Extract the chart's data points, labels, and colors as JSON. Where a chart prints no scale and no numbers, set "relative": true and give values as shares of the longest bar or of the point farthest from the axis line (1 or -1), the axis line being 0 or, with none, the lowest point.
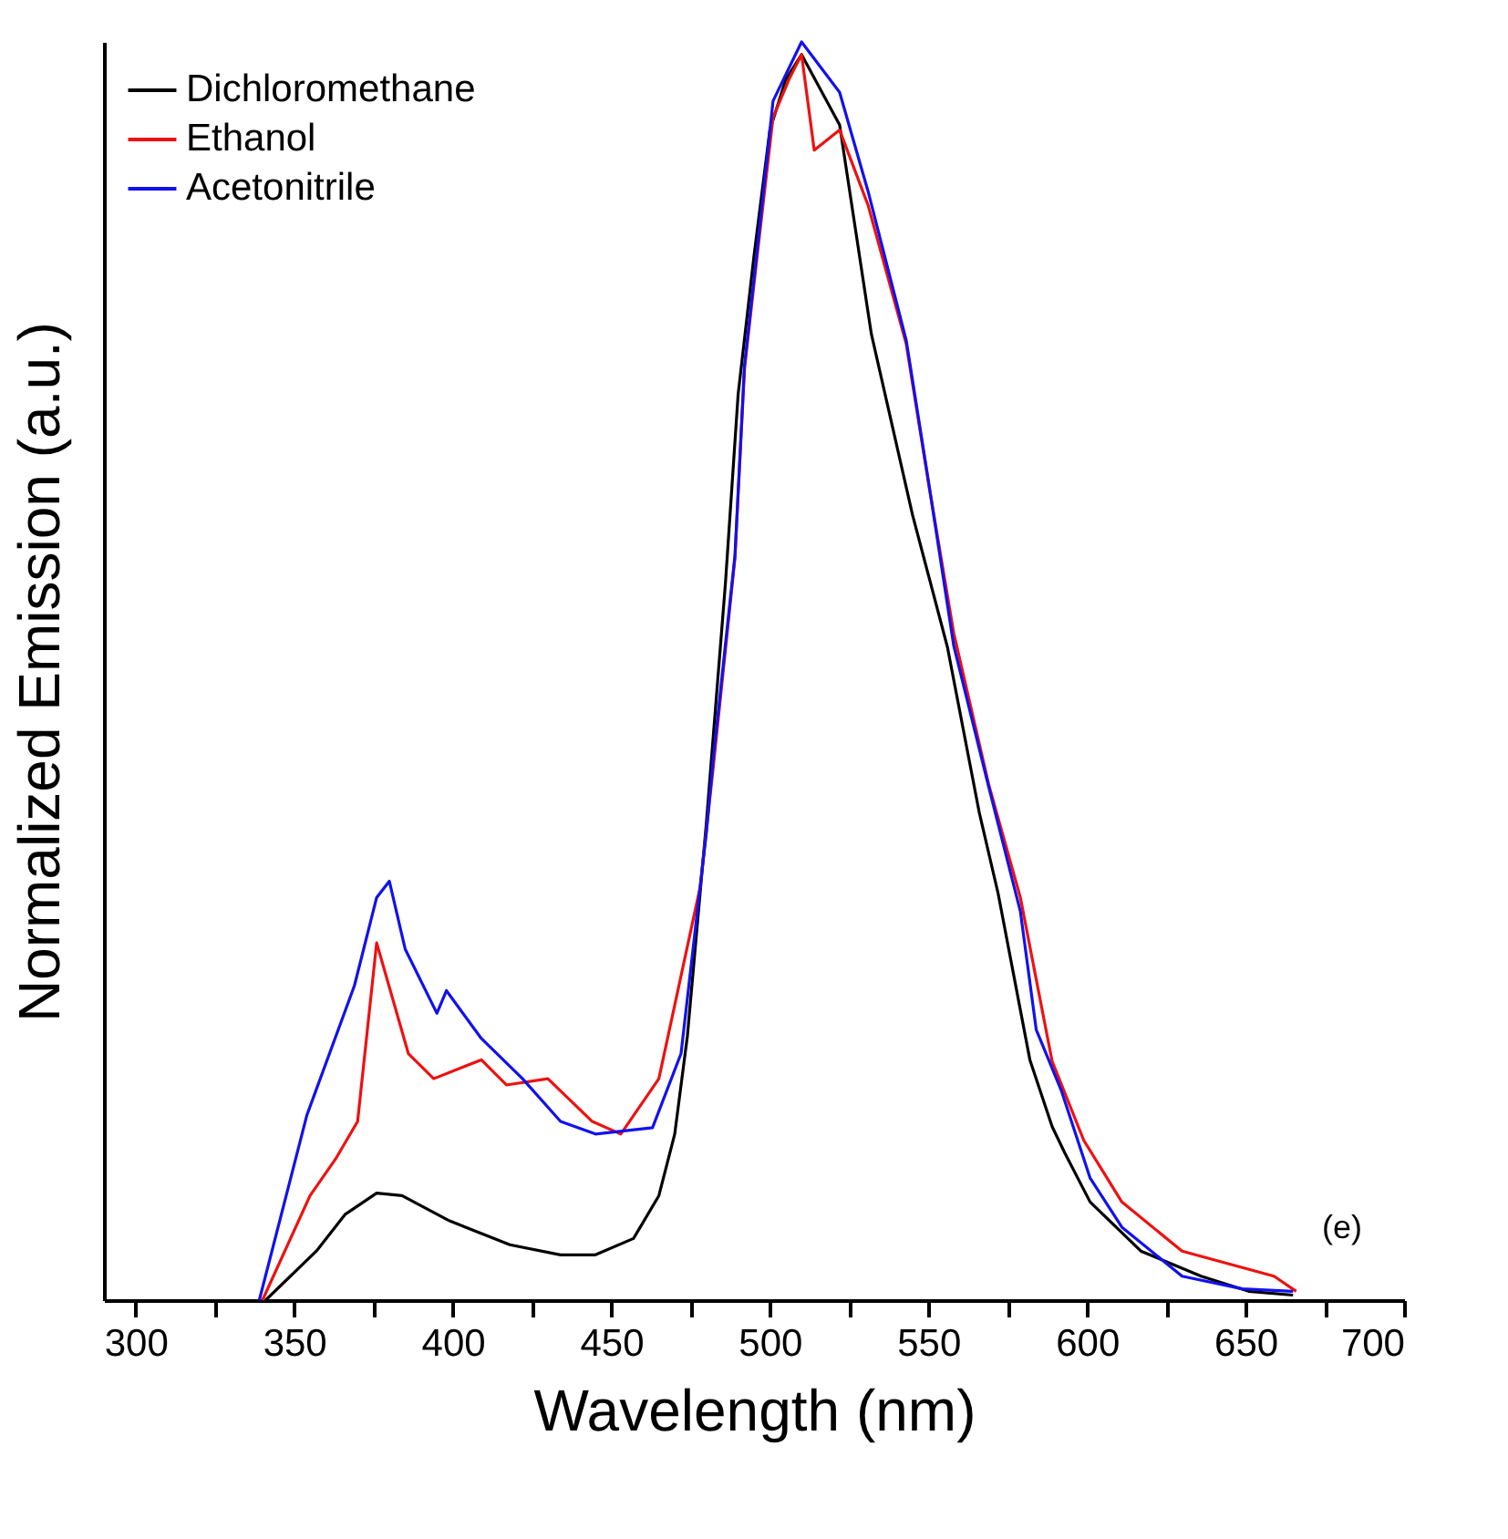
{
  "chart_data": {
    "type": "line",
    "xlabel": "Wavelength (nm)",
    "ylabel": "Normalized Emission (a.u.)",
    "relative": true,
    "legend": "top left",
    "grid": false,
    "marker": "none",
    "line_style": "solid",
    "xlim": [
      290,
      700
    ],
    "xticks": [
      300,
      {
        "value": 325,
        "label": null
      },
      350,
      {
        "value": 375,
        "label": null
      },
      400,
      {
        "value": 425,
        "label": null
      },
      450,
      {
        "value": 475,
        "label": null
      },
      500,
      {
        "value": 525,
        "label": null
      },
      550,
      {
        "value": 575,
        "label": null
      },
      600,
      {
        "value": 625,
        "label": null
      },
      650,
      {
        "value": 675,
        "label": null
      },
      700
    ],
    "annotations": [
      "(e)"
    ],
    "series": [
      {
        "name": "Dichloromethane",
        "color": "#000000",
        "x": [
          341,
          357,
          366,
          376,
          384,
          399,
          418,
          434,
          445,
          457,
          465,
          470,
          474,
          480,
          486,
          490,
          495,
          500,
          505,
          510,
          522,
          532,
          545,
          556,
          566,
          572,
          582,
          589,
          593,
          601,
          617,
          636,
          651,
          665
        ],
        "values": [
          0,
          0.039,
          0.068,
          0.085,
          0.083,
          0.063,
          0.044,
          0.036,
          0.036,
          0.049,
          0.083,
          0.132,
          0.21,
          0.38,
          0.57,
          0.72,
          0.83,
          0.93,
          0.97,
          0.99,
          0.934,
          0.768,
          0.624,
          0.519,
          0.388,
          0.323,
          0.191,
          0.138,
          0.117,
          0.078,
          0.039,
          0.019,
          0.007,
          0.004
        ]
      },
      {
        "name": "Ethanol",
        "color": "#ee1111",
        "x": [
          340,
          355,
          363,
          370,
          376,
          386,
          394,
          409,
          417,
          430,
          444,
          453,
          465,
          478,
          482,
          489,
          492,
          496,
          501,
          506,
          510,
          514,
          522,
          531,
          543,
          550,
          558,
          569,
          579,
          589,
          599,
          611,
          630,
          659,
          666
        ],
        "values": [
          0,
          0.083,
          0.112,
          0.142,
          0.284,
          0.196,
          0.176,
          0.191,
          0.171,
          0.176,
          0.142,
          0.132,
          0.176,
          0.328,
          0.42,
          0.59,
          0.74,
          0.83,
          0.94,
          0.97,
          0.99,
          0.914,
          0.93,
          0.87,
          0.76,
          0.65,
          0.53,
          0.41,
          0.32,
          0.19,
          0.127,
          0.078,
          0.039,
          0.019,
          0.007
        ]
      },
      {
        "name": "Acetonitrile",
        "color": "#1111ee",
        "x": [
          339,
          354,
          369,
          376,
          380,
          385,
          395,
          398,
          409,
          422,
          434,
          445,
          463,
          472,
          480,
          482,
          489,
          492,
          496,
          501,
          510,
          522,
          531,
          543,
          550,
          558,
          569,
          579,
          584,
          592,
          601,
          611,
          630,
          649,
          665
        ],
        "values": [
          0,
          0.147,
          0.25,
          0.32,
          0.333,
          0.279,
          0.228,
          0.246,
          0.208,
          0.176,
          0.142,
          0.132,
          0.137,
          0.196,
          0.372,
          0.427,
          0.592,
          0.743,
          0.835,
          0.953,
          1,
          0.96,
          0.881,
          0.763,
          0.651,
          0.52,
          0.408,
          0.309,
          0.215,
          0.166,
          0.097,
          0.058,
          0.019,
          0.009,
          0.007
        ]
      }
    ]
  }
}
